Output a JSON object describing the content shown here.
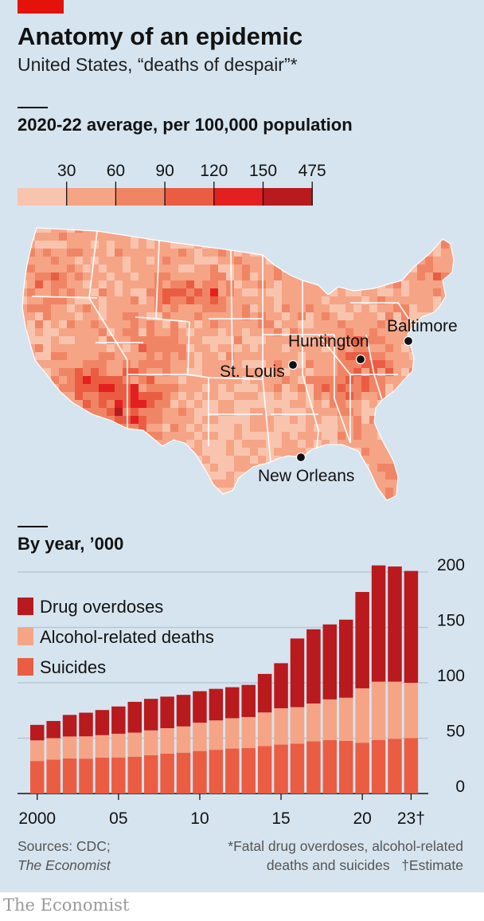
{
  "title": "Anatomy of an epidemic",
  "subtitle": "United States, “deaths of despair”*",
  "map_section": {
    "heading": "2020-22 average, per 100,000 population",
    "scale": {
      "ticks": [
        "30",
        "60",
        "90",
        "120",
        "150",
        "475"
      ],
      "colors": [
        "#f9c4ae",
        "#f6a486",
        "#f08565",
        "#ea5d43",
        "#e3201f",
        "#b81a1e"
      ]
    },
    "cities": [
      {
        "name": "Baltimore"
      },
      {
        "name": "Huntington"
      },
      {
        "name": "St. Louis"
      },
      {
        "name": "New Orleans"
      }
    ]
  },
  "chart_data": {
    "type": "bar",
    "stacked": true,
    "title": "By year, ’000",
    "categories": [
      "2000",
      "2001",
      "2002",
      "2003",
      "2004",
      "2005",
      "2006",
      "2007",
      "2008",
      "2009",
      "2010",
      "2011",
      "2012",
      "2013",
      "2014",
      "2015",
      "2016",
      "2017",
      "2018",
      "2019",
      "2020",
      "2021",
      "2022",
      "2023"
    ],
    "x_tick_labels": [
      "2000",
      "05",
      "10",
      "15",
      "20",
      "23†"
    ],
    "series": [
      {
        "name": "Suicides",
        "color": "#ea5d43",
        "values": [
          29.4,
          30.6,
          31.7,
          31.5,
          32.4,
          32.6,
          33.3,
          34.6,
          36.0,
          36.9,
          38.4,
          39.5,
          40.6,
          41.1,
          42.8,
          44.2,
          45.0,
          47.2,
          48.3,
          47.5,
          45.9,
          48.2,
          49.5,
          50.0
        ]
      },
      {
        "name": "Alcohol-related deaths",
        "color": "#f6a486",
        "values": [
          18.6,
          19.4,
          19.8,
          20.1,
          20.3,
          21.4,
          21.7,
          22.4,
          23.0,
          23.7,
          25.6,
          26.5,
          27.4,
          28.0,
          30.4,
          32.8,
          33.0,
          34.1,
          36.7,
          39.0,
          49.1,
          52.8,
          51.5,
          50.0
        ]
      },
      {
        "name": "Drug overdoses",
        "color": "#b81a1e",
        "values": [
          14.0,
          15.5,
          19.5,
          21.4,
          22.7,
          24.6,
          27.8,
          28.5,
          28.5,
          28.5,
          28.4,
          28.5,
          28.0,
          29.0,
          34.8,
          40.7,
          62.0,
          67.0,
          67.7,
          70.5,
          87.0,
          105.0,
          104.0,
          101.0
        ]
      }
    ],
    "ylim": [
      0,
      200
    ],
    "y_ticks": [
      "0",
      "50",
      "100",
      "150",
      "200"
    ],
    "legend": "top-left"
  },
  "footer": {
    "sources_line1": "Sources: CDC;",
    "sources_line2": "The Economist",
    "note_line1": "*Fatal drug overdoses, alcohol-related",
    "note_line2": "deaths and suicides",
    "note_dagger": "†Estimate"
  },
  "credit": "The Economist"
}
